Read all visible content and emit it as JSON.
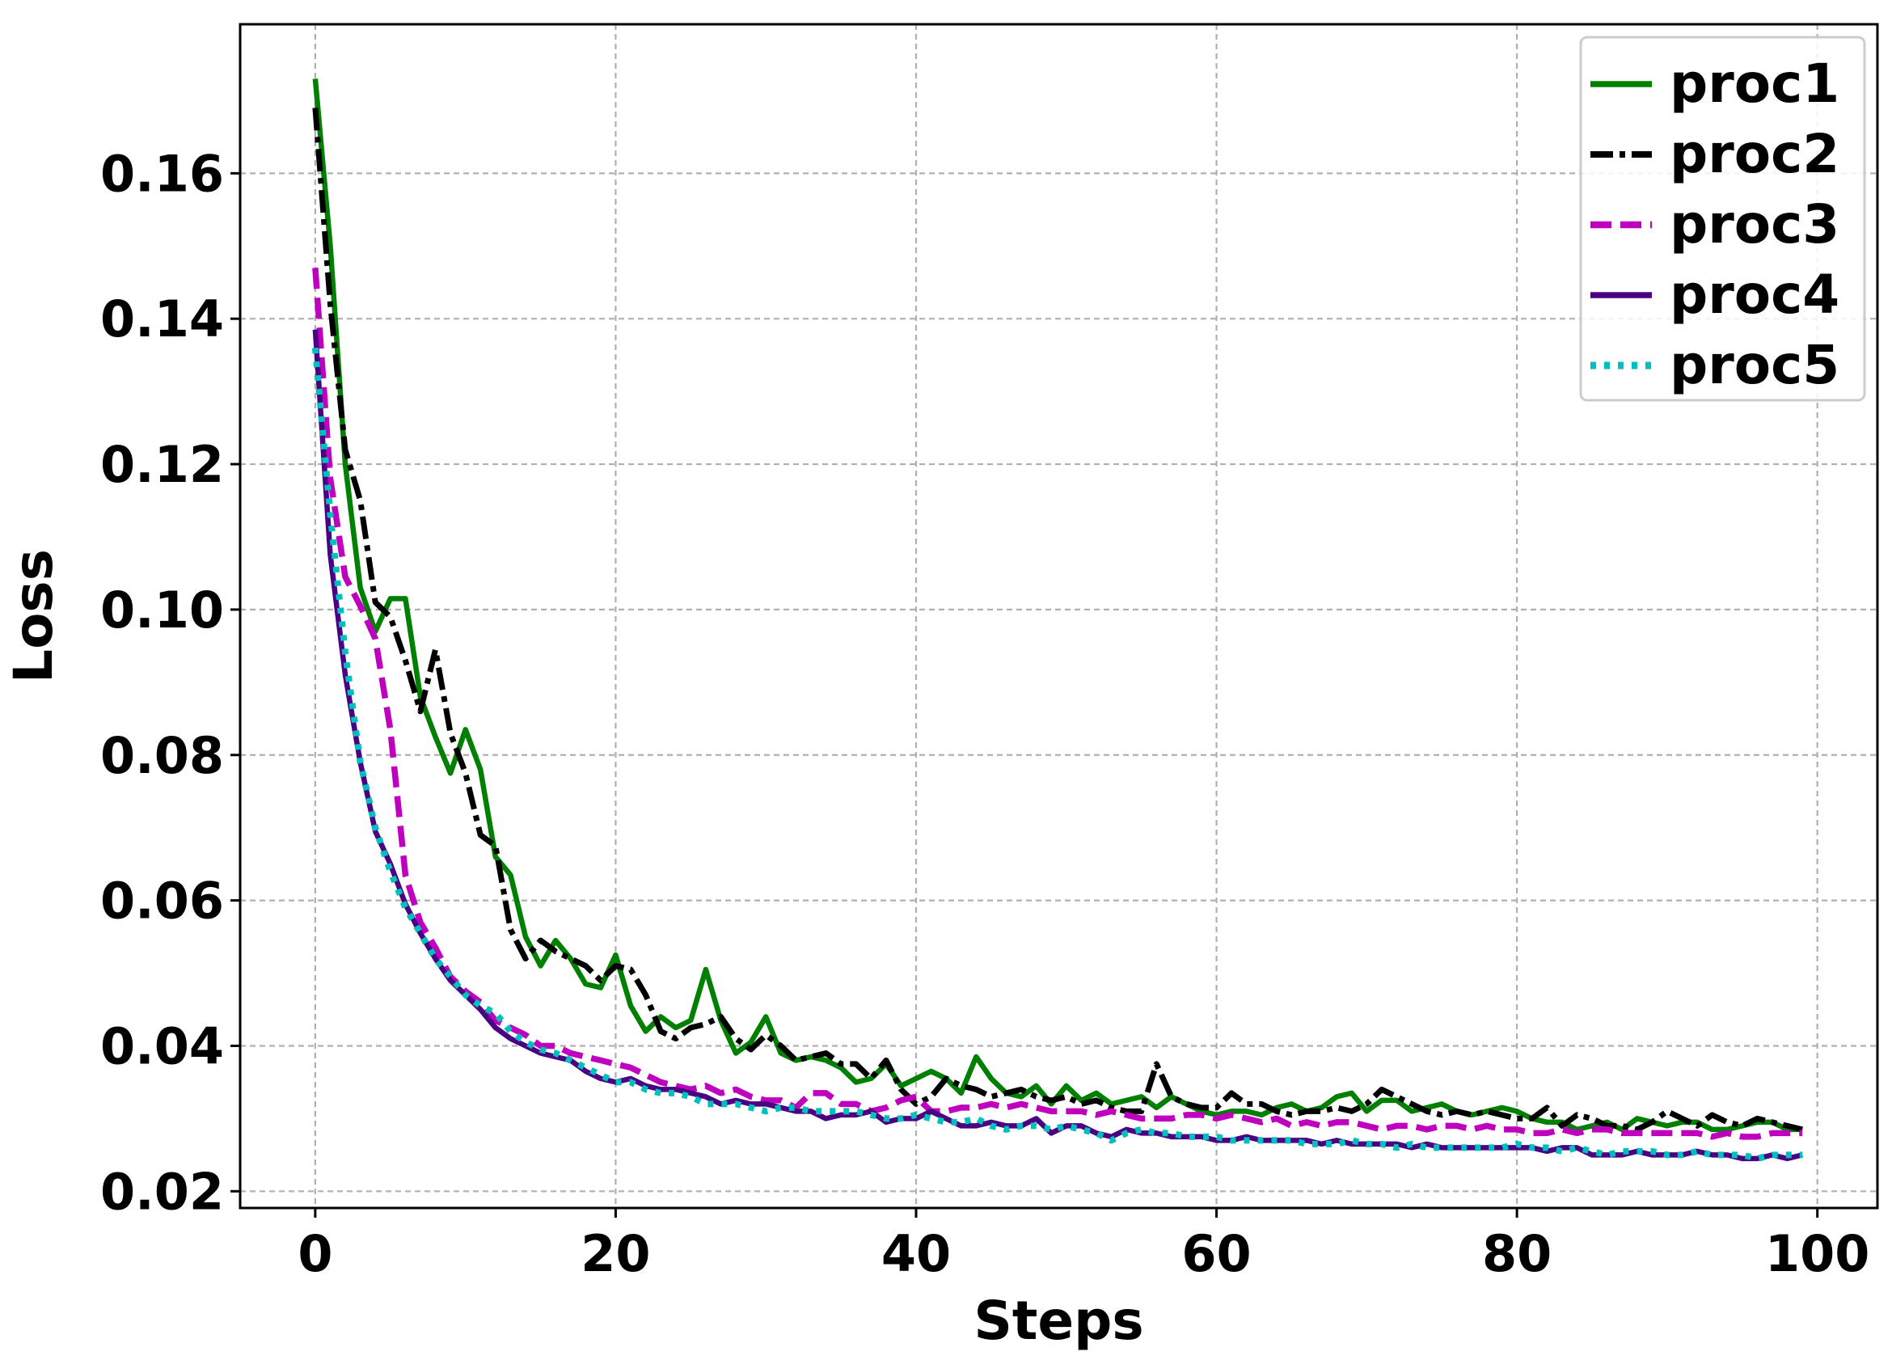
{
  "chart_data": {
    "type": "line",
    "title": "",
    "xlabel": "Steps",
    "ylabel": "Loss",
    "xlim": [
      -5,
      104
    ],
    "ylim": [
      0.0177,
      0.1805
    ],
    "xticks": [
      0,
      20,
      40,
      60,
      80,
      100
    ],
    "yticks": [
      0.02,
      0.04,
      0.06,
      0.08,
      0.1,
      0.12,
      0.14,
      0.16
    ],
    "ytick_labels": [
      "0.02",
      "0.04",
      "0.06",
      "0.08",
      "0.10",
      "0.12",
      "0.14",
      "0.16"
    ],
    "grid": true,
    "legend_position": "upper-right",
    "x": [
      0,
      1,
      2,
      3,
      4,
      5,
      6,
      7,
      8,
      9,
      10,
      11,
      12,
      13,
      14,
      15,
      16,
      17,
      18,
      19,
      20,
      21,
      22,
      23,
      24,
      25,
      26,
      27,
      28,
      29,
      30,
      31,
      32,
      33,
      34,
      35,
      36,
      37,
      38,
      39,
      40,
      41,
      42,
      43,
      44,
      45,
      46,
      47,
      48,
      49,
      50,
      51,
      52,
      53,
      54,
      55,
      56,
      57,
      58,
      59,
      60,
      61,
      62,
      63,
      64,
      65,
      66,
      67,
      68,
      69,
      70,
      71,
      72,
      73,
      74,
      75,
      76,
      77,
      78,
      79,
      80,
      81,
      82,
      83,
      84,
      85,
      86,
      87,
      88,
      89,
      90,
      91,
      92,
      93,
      94,
      95,
      96,
      97,
      98,
      99
    ],
    "series": [
      {
        "name": "proc1",
        "color": "#008000",
        "style": "solid",
        "values": [
          0.173,
          0.15,
          0.12,
          0.103,
          0.097,
          0.1015,
          0.1015,
          0.088,
          0.0825,
          0.0775,
          0.0835,
          0.078,
          0.066,
          0.0635,
          0.055,
          0.051,
          0.0545,
          0.052,
          0.0485,
          0.048,
          0.0525,
          0.0455,
          0.042,
          0.044,
          0.0425,
          0.0435,
          0.0505,
          0.0435,
          0.039,
          0.0405,
          0.044,
          0.039,
          0.038,
          0.0385,
          0.038,
          0.037,
          0.035,
          0.0355,
          0.0375,
          0.0345,
          0.0355,
          0.0365,
          0.0355,
          0.0335,
          0.0385,
          0.0355,
          0.0335,
          0.033,
          0.0345,
          0.032,
          0.0345,
          0.0325,
          0.0335,
          0.032,
          0.0325,
          0.033,
          0.0315,
          0.033,
          0.032,
          0.031,
          0.0305,
          0.031,
          0.031,
          0.0305,
          0.0315,
          0.032,
          0.031,
          0.0315,
          0.033,
          0.0335,
          0.031,
          0.0325,
          0.0325,
          0.031,
          0.0315,
          0.032,
          0.031,
          0.0305,
          0.031,
          0.0315,
          0.031,
          0.03,
          0.0295,
          0.0295,
          0.0285,
          0.029,
          0.0295,
          0.0285,
          0.03,
          0.0295,
          0.029,
          0.0295,
          0.0295,
          0.0285,
          0.0285,
          0.029,
          0.0295,
          0.0295,
          0.0285,
          0.0285
        ]
      },
      {
        "name": "proc2",
        "color": "#000000",
        "style": "dashdot",
        "values": [
          0.169,
          0.142,
          0.122,
          0.115,
          0.101,
          0.099,
          0.093,
          0.086,
          0.0945,
          0.083,
          0.0775,
          0.069,
          0.0675,
          0.056,
          0.052,
          0.0545,
          0.053,
          0.052,
          0.051,
          0.049,
          0.051,
          0.0505,
          0.047,
          0.042,
          0.041,
          0.0425,
          0.043,
          0.044,
          0.041,
          0.0395,
          0.0415,
          0.04,
          0.038,
          0.0385,
          0.039,
          0.0375,
          0.0375,
          0.0355,
          0.038,
          0.034,
          0.032,
          0.033,
          0.0355,
          0.0345,
          0.034,
          0.033,
          0.0335,
          0.034,
          0.033,
          0.0325,
          0.033,
          0.032,
          0.0325,
          0.0315,
          0.031,
          0.031,
          0.0375,
          0.033,
          0.032,
          0.0315,
          0.0315,
          0.0335,
          0.032,
          0.032,
          0.031,
          0.0305,
          0.031,
          0.031,
          0.0315,
          0.031,
          0.032,
          0.034,
          0.033,
          0.032,
          0.031,
          0.0305,
          0.031,
          0.0305,
          0.031,
          0.0305,
          0.03,
          0.03,
          0.0315,
          0.029,
          0.0305,
          0.03,
          0.029,
          0.029,
          0.0285,
          0.0295,
          0.031,
          0.03,
          0.029,
          0.0305,
          0.0295,
          0.029,
          0.03,
          0.0295,
          0.029,
          0.0285
        ]
      },
      {
        "name": "proc3",
        "color": "#bf00bf",
        "style": "dashed",
        "values": [
          0.147,
          0.118,
          0.1045,
          0.1005,
          0.096,
          0.0835,
          0.0635,
          0.057,
          0.0535,
          0.0495,
          0.0475,
          0.046,
          0.0435,
          0.0425,
          0.0415,
          0.04,
          0.04,
          0.039,
          0.0385,
          0.038,
          0.0375,
          0.037,
          0.036,
          0.035,
          0.0345,
          0.034,
          0.0345,
          0.0335,
          0.034,
          0.033,
          0.0325,
          0.0325,
          0.0315,
          0.0335,
          0.0335,
          0.032,
          0.032,
          0.031,
          0.0315,
          0.0325,
          0.033,
          0.031,
          0.031,
          0.0315,
          0.0315,
          0.032,
          0.0315,
          0.032,
          0.0315,
          0.031,
          0.031,
          0.031,
          0.0305,
          0.031,
          0.0305,
          0.03,
          0.03,
          0.03,
          0.0305,
          0.0305,
          0.03,
          0.0305,
          0.03,
          0.0295,
          0.03,
          0.029,
          0.0295,
          0.029,
          0.0295,
          0.0295,
          0.029,
          0.0285,
          0.029,
          0.029,
          0.0285,
          0.029,
          0.029,
          0.0285,
          0.029,
          0.0285,
          0.0285,
          0.028,
          0.028,
          0.0285,
          0.028,
          0.0285,
          0.0285,
          0.028,
          0.028,
          0.028,
          0.028,
          0.028,
          0.028,
          0.0275,
          0.028,
          0.0275,
          0.0275,
          0.028,
          0.028,
          0.028
        ]
      },
      {
        "name": "proc4",
        "color": "#4b0082",
        "style": "solid",
        "values": [
          0.1385,
          0.1075,
          0.091,
          0.079,
          0.0695,
          0.065,
          0.0595,
          0.0555,
          0.052,
          0.049,
          0.047,
          0.045,
          0.0425,
          0.041,
          0.04,
          0.039,
          0.0385,
          0.038,
          0.0365,
          0.0355,
          0.035,
          0.0355,
          0.0345,
          0.034,
          0.034,
          0.0335,
          0.033,
          0.032,
          0.0325,
          0.032,
          0.032,
          0.0315,
          0.031,
          0.031,
          0.03,
          0.0305,
          0.0305,
          0.031,
          0.0295,
          0.03,
          0.03,
          0.031,
          0.03,
          0.029,
          0.029,
          0.0295,
          0.029,
          0.029,
          0.03,
          0.028,
          0.029,
          0.029,
          0.028,
          0.0275,
          0.0285,
          0.028,
          0.028,
          0.0275,
          0.0275,
          0.0275,
          0.027,
          0.027,
          0.0275,
          0.027,
          0.027,
          0.027,
          0.027,
          0.0265,
          0.027,
          0.0265,
          0.0265,
          0.0265,
          0.0265,
          0.026,
          0.0265,
          0.026,
          0.026,
          0.026,
          0.026,
          0.026,
          0.026,
          0.026,
          0.0255,
          0.026,
          0.026,
          0.025,
          0.025,
          0.025,
          0.0255,
          0.025,
          0.025,
          0.025,
          0.0255,
          0.025,
          0.025,
          0.0245,
          0.0245,
          0.025,
          0.0245,
          0.025
        ]
      },
      {
        "name": "proc5",
        "color": "#00bfbf",
        "style": "dotted",
        "values": [
          0.136,
          0.113,
          0.094,
          0.079,
          0.07,
          0.064,
          0.059,
          0.0555,
          0.052,
          0.0495,
          0.047,
          0.0455,
          0.0445,
          0.042,
          0.0405,
          0.0395,
          0.039,
          0.038,
          0.037,
          0.036,
          0.035,
          0.035,
          0.034,
          0.0335,
          0.0335,
          0.033,
          0.032,
          0.032,
          0.032,
          0.0315,
          0.031,
          0.0315,
          0.0315,
          0.031,
          0.031,
          0.031,
          0.031,
          0.0305,
          0.03,
          0.03,
          0.0305,
          0.03,
          0.0295,
          0.0295,
          0.03,
          0.029,
          0.0285,
          0.029,
          0.029,
          0.0285,
          0.029,
          0.0285,
          0.028,
          0.027,
          0.028,
          0.0285,
          0.028,
          0.028,
          0.0275,
          0.0275,
          0.0275,
          0.027,
          0.027,
          0.027,
          0.027,
          0.027,
          0.0265,
          0.0265,
          0.0265,
          0.027,
          0.0265,
          0.0265,
          0.026,
          0.0265,
          0.026,
          0.026,
          0.026,
          0.026,
          0.026,
          0.026,
          0.0265,
          0.026,
          0.026,
          0.0255,
          0.026,
          0.0255,
          0.025,
          0.0255,
          0.0255,
          0.0255,
          0.025,
          0.025,
          0.0255,
          0.025,
          0.025,
          0.025,
          0.0245,
          0.025,
          0.025,
          0.025
        ]
      }
    ]
  }
}
